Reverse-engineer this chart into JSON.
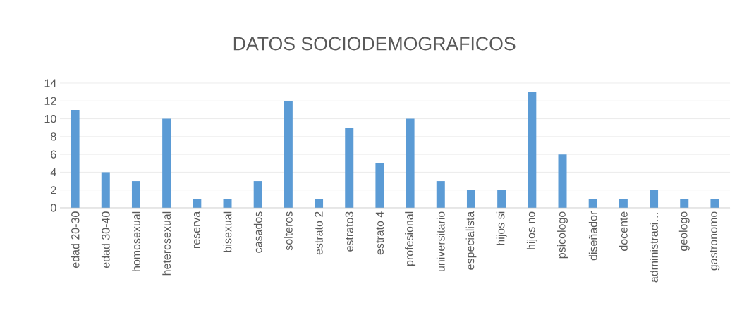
{
  "chart_data": {
    "type": "bar",
    "title": "DATOS SOCIODEMOGRAFICOS",
    "categories": [
      "edad 20-30",
      "edad 30-40",
      "homosexual",
      "heterosexual",
      "reserva",
      "bisexual",
      "casados",
      "solteros",
      "estrato 2",
      "estrato3",
      "estrato 4",
      "profesional",
      "universitario",
      "especialista",
      "hijos si",
      "hijos no",
      "psicologo",
      "diseñador",
      "docente",
      "administraci…",
      "geologo",
      "gastronomo"
    ],
    "values": [
      11,
      4,
      3,
      10,
      1,
      1,
      3,
      12,
      1,
      9,
      5,
      10,
      3,
      2,
      2,
      13,
      6,
      1,
      1,
      2,
      1,
      1
    ],
    "color": "#5b9bd5",
    "ylim": [
      0,
      14
    ],
    "yticks": [
      0,
      2,
      4,
      6,
      8,
      10,
      12,
      14
    ],
    "grid": "y"
  }
}
